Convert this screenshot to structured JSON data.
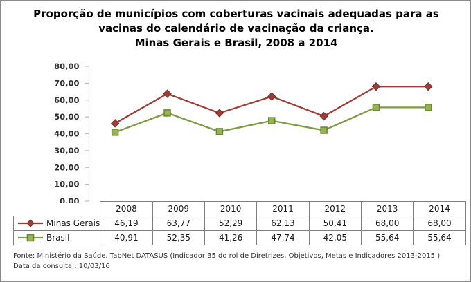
{
  "chart_data": {
    "type": "line",
    "title": "Proporção de municípios com coberturas vacinais adequadas para as\nvacinas do calendário de vacinação da criança.\nMinas Gerais e Brasil, 2008 a 2014",
    "categories": [
      "2008",
      "2009",
      "2010",
      "2011",
      "2012",
      "2013",
      "2014"
    ],
    "series": [
      {
        "name": "Minas Gerais",
        "values": [
          46.19,
          63.77,
          52.29,
          62.13,
          50.41,
          68.0,
          68.0
        ],
        "marker": "diamond",
        "line_color": "#9e3c36",
        "marker_fill": "#9e3c36",
        "marker_border": "#7a2b27"
      },
      {
        "name": "Brasil",
        "values": [
          40.91,
          52.35,
          41.26,
          47.74,
          42.05,
          55.64,
          55.64
        ],
        "marker": "square",
        "line_color": "#7e9b41",
        "marker_fill": "#97b353",
        "marker_border": "#69862f"
      }
    ],
    "xlabel": "",
    "ylabel": "",
    "ylim": [
      0,
      80
    ],
    "ytick_step": 10,
    "y_tick_format": "comma-decimal-2",
    "grid": false,
    "legend_position": "data-table-left",
    "axis_color": "#bfbfbf",
    "table_border_color": "#7f7f7f"
  },
  "footer": {
    "source": "Fonte: Ministério da Saúde. TabNet DATASUS (Indicador 35 do rol de Diretrizes, Objetivos, Metas e Indicadores 2013-2015 )",
    "date": "Data da consulta : 10/03/16"
  }
}
